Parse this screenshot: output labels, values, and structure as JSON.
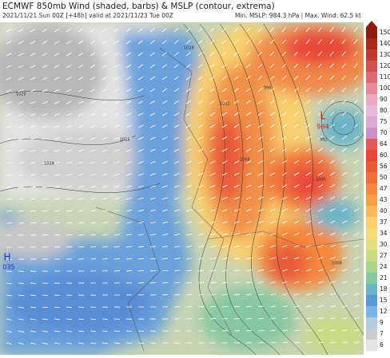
{
  "header": {
    "title": "ECMWF 850mb Wind (shaded, barbs) & MSLP (contour, extrema)",
    "run": "2021/11/21 Sun 00Z [+48h] valid at 2021/11/23 Tue 00Z",
    "stats": "Min. MSLP: 984.3 hPa | Max. Wind: 62.5 kt"
  },
  "colorbar": {
    "levels": [
      150,
      140,
      130,
      120,
      110,
      100,
      90,
      80,
      75,
      70,
      64,
      60,
      56,
      50,
      47,
      43,
      40,
      37,
      34,
      30,
      27,
      24,
      21,
      18,
      15,
      12,
      9,
      7,
      6
    ],
    "colors": [
      "#8c1c10",
      "#a8281c",
      "#c03a30",
      "#d05050",
      "#dc6a70",
      "#e48a98",
      "#eca8c0",
      "#e8b8d8",
      "#dca8d4",
      "#cc90c8",
      "#e05a5a",
      "#e8463a",
      "#ec5a32",
      "#f0703a",
      "#f4883e",
      "#f8a048",
      "#fab858",
      "#fcd06a",
      "#f4dc78",
      "#e0e080",
      "#c8dc84",
      "#a8d490",
      "#88c8a0",
      "#6cb4c8",
      "#5a9ad8",
      "#7ab4e4",
      "#b4ccdc",
      "#c8ccd0",
      "#e4e4e4"
    ]
  },
  "map": {
    "low": {
      "symbol": "L",
      "value": "984"
    },
    "high": {
      "symbol": "H",
      "value": "035"
    },
    "isobar_labels": [
      "1020",
      "1012",
      "1004",
      "996",
      "992",
      "1000",
      "1008",
      "1024",
      "1016",
      "1028"
    ]
  }
}
